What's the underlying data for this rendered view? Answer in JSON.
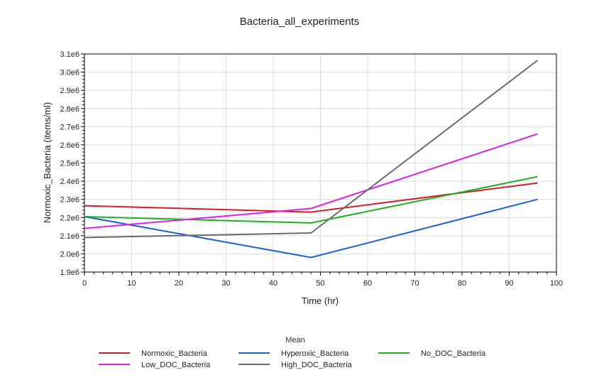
{
  "chart_data": {
    "type": "line",
    "title": "Bacteria_all_experiments",
    "xlabel": "Time (hr)",
    "ylabel": "Normoxic_Bacteria (items/ml)",
    "xlim": [
      0,
      100
    ],
    "ylim": [
      1900000,
      3100000
    ],
    "xticks": [
      0,
      10,
      20,
      30,
      40,
      50,
      60,
      70,
      80,
      90,
      100
    ],
    "yticks": [
      1900000,
      2000000,
      2100000,
      2200000,
      2300000,
      2400000,
      2500000,
      2600000,
      2700000,
      2800000,
      2900000,
      3000000,
      3100000
    ],
    "ytick_labels": [
      "1.9e6",
      "2.0e6",
      "2.1e6",
      "2.2e6",
      "2.3e6",
      "2.4e6",
      "2.5e6",
      "2.6e6",
      "2.7e6",
      "2.8e6",
      "2.9e6",
      "3.0e6",
      "3.1e6"
    ],
    "grid": true,
    "legend_title": "Mean",
    "legend_position": "bottom",
    "series": [
      {
        "name": "Normoxic_Bacteria",
        "color": "#d0202a",
        "x": [
          0,
          48,
          96
        ],
        "y": [
          2265000,
          2230000,
          2390000
        ]
      },
      {
        "name": "Hyperoxic_Bacteria",
        "color": "#1a62d4",
        "x": [
          0,
          48,
          96
        ],
        "y": [
          2205000,
          1980000,
          2300000
        ]
      },
      {
        "name": "No_DOC_Bacteria",
        "color": "#1fb01f",
        "x": [
          0,
          48,
          96
        ],
        "y": [
          2205000,
          2170000,
          2425000
        ]
      },
      {
        "name": "Low_DOC_Bacteria",
        "color": "#e020e0",
        "x": [
          0,
          48,
          96
        ],
        "y": [
          2140000,
          2250000,
          2660000
        ]
      },
      {
        "name": "High_DOC_Bacteria",
        "color": "#6b6b6b",
        "x": [
          0,
          48,
          96
        ],
        "y": [
          2090000,
          2115000,
          3065000
        ]
      }
    ]
  }
}
